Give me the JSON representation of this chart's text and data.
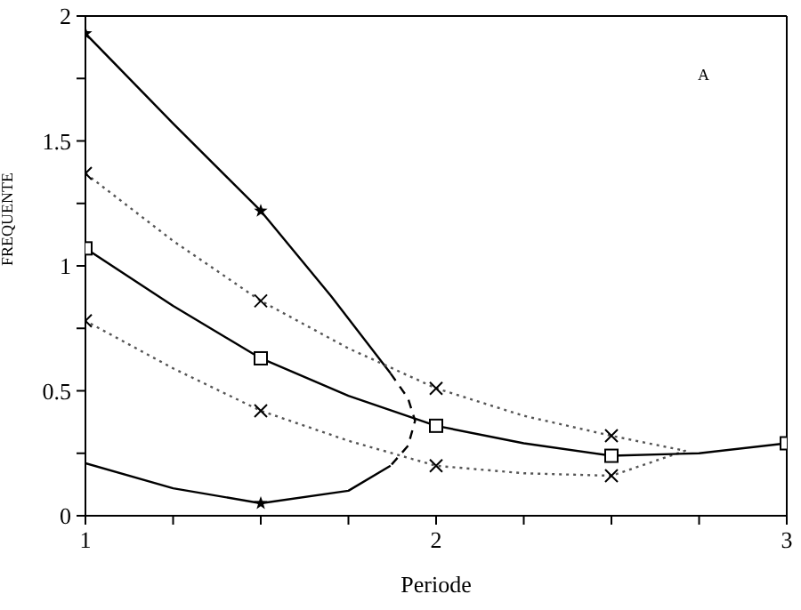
{
  "chart_data": {
    "type": "line",
    "xlabel": "Periode",
    "ylabel": "FREQUENTE",
    "annotations": [
      "A"
    ],
    "legend": false,
    "xlim": [
      1,
      3
    ],
    "xticks": [
      1,
      {
        "value": 1.25,
        "label": null
      },
      {
        "value": 1.5,
        "label": null
      },
      {
        "value": 1.75,
        "label": null
      },
      2,
      {
        "value": 2.25,
        "label": null
      },
      {
        "value": 2.5,
        "label": null
      },
      {
        "value": 2.75,
        "label": null
      },
      3
    ],
    "ylim": [
      0,
      2
    ],
    "yticks": [
      0,
      {
        "value": 0.25,
        "label": null
      },
      0.5,
      {
        "value": 0.75,
        "label": null
      },
      1,
      {
        "value": 1.25,
        "label": null
      },
      1.5,
      {
        "value": 1.75,
        "label": null
      },
      2
    ],
    "series": [
      {
        "type": "line",
        "line_style": "solid",
        "marker": "none",
        "color": "#000000",
        "x": [
          1,
          1.25,
          1.5,
          1.7,
          1.87
        ],
        "values": [
          1.93,
          1.57,
          1.22,
          0.88,
          0.57
        ]
      },
      {
        "type": "line",
        "line_style": "dashed",
        "marker": "none",
        "color": "#000000",
        "x": [
          1.87,
          1.92,
          1.94,
          1.92,
          1.87
        ],
        "values": [
          0.57,
          0.47,
          0.38,
          0.28,
          0.2
        ]
      },
      {
        "type": "line",
        "line_style": "solid",
        "marker": "none",
        "color": "#000000",
        "x": [
          1.87,
          1.75,
          1.5,
          1.25,
          1
        ],
        "values": [
          0.2,
          0.1,
          0.05,
          0.11,
          0.21
        ]
      },
      {
        "type": "line",
        "line_style": "dotted",
        "marker": "none",
        "color": "#555555",
        "x": [
          1,
          1.25,
          1.5,
          1.75,
          2,
          2.25,
          2.5,
          2.71,
          2.5,
          2.25,
          2,
          1.75,
          1.5,
          1.25,
          1
        ],
        "values": [
          1.37,
          1.1,
          0.86,
          0.67,
          0.51,
          0.4,
          0.32,
          0.26,
          0.16,
          0.17,
          0.2,
          0.3,
          0.42,
          0.59,
          0.78
        ]
      },
      {
        "type": "line",
        "line_style": "solid",
        "marker": "none",
        "color": "#000000",
        "x": [
          1,
          1.25,
          1.5,
          1.75,
          2,
          2.25,
          2.5,
          2.75,
          3
        ],
        "values": [
          1.07,
          0.84,
          0.63,
          0.48,
          0.36,
          0.29,
          0.24,
          0.25,
          0.29
        ]
      },
      {
        "type": "scatter",
        "marker": "star",
        "color": "#000000",
        "x": [
          1,
          1.5,
          1.5
        ],
        "values": [
          1.93,
          1.22,
          0.05
        ]
      },
      {
        "type": "scatter",
        "marker": "cross",
        "color": "#000000",
        "x": [
          1,
          1.5,
          2,
          2.5,
          2.5,
          2,
          1.5,
          1
        ],
        "values": [
          1.37,
          0.86,
          0.51,
          0.32,
          0.16,
          0.2,
          0.42,
          0.78
        ]
      },
      {
        "type": "scatter",
        "marker": "square",
        "color": "#000000",
        "x": [
          1,
          1.5,
          2,
          2.5,
          3
        ],
        "values": [
          1.07,
          0.63,
          0.36,
          0.24,
          0.29
        ]
      }
    ]
  }
}
